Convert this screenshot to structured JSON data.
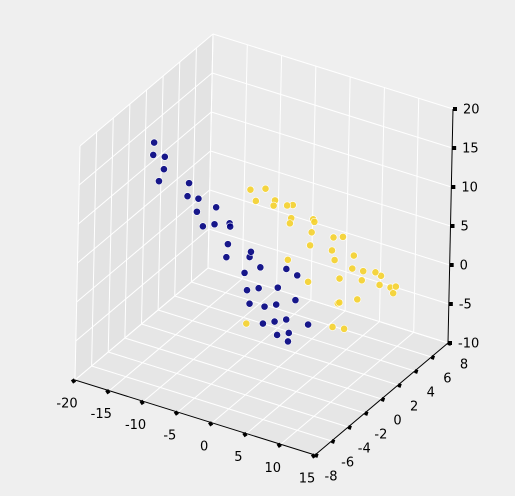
{
  "chart_data": {
    "type": "scatter3d",
    "xlim": [
      -20,
      15
    ],
    "ylim": [
      -8,
      8
    ],
    "zlim": [
      -10,
      20
    ],
    "xticks": [
      -20,
      -15,
      -10,
      -5,
      0,
      5,
      10,
      15
    ],
    "yticks": [
      -8,
      -6,
      -4,
      -2,
      0,
      2,
      4,
      6,
      8
    ],
    "zticks": [
      -10,
      -5,
      0,
      5,
      10,
      15,
      20
    ],
    "grid": true,
    "series": [
      {
        "color": "#000080",
        "x": [
          -14,
          -13.5,
          -13,
          -12.5,
          -12,
          -10,
          -9,
          -8,
          -7,
          -6,
          -5.5,
          -5,
          -4,
          -4.5,
          -3,
          -2,
          -1,
          -0.5,
          0,
          0.5,
          1,
          1.5,
          2,
          2.5,
          3,
          3.5,
          4,
          4.5,
          5,
          5.5,
          6,
          6.5,
          2,
          3,
          -2,
          4
        ],
        "y": [
          -4,
          -4.5,
          -3.5,
          -4,
          -5,
          -3,
          -4,
          -3.5,
          -4.5,
          -3,
          -5,
          -4,
          -3,
          -2.5,
          -4,
          -5,
          -3,
          -4,
          -2.5,
          -4.5,
          -3.5,
          -5,
          -2,
          -4,
          -3,
          -5,
          -4,
          -3,
          -4.5,
          -3.5,
          -4,
          -2,
          -1,
          -0.5,
          -2,
          -1.5
        ],
        "z": [
          18.5,
          17.5,
          16.5,
          15.5,
          15,
          13.5,
          13,
          12.5,
          12,
          11.5,
          11,
          10.5,
          10,
          9,
          8.5,
          8,
          6.5,
          5.5,
          5,
          4,
          3.5,
          3,
          2.5,
          2,
          1.5,
          1,
          0.5,
          0,
          -0.5,
          -1,
          -1.5,
          -1,
          4,
          3,
          6,
          1
        ]
      },
      {
        "color": "#f5d22c",
        "x": [
          -7,
          -6,
          -5,
          -4,
          -3,
          -2,
          -1,
          0,
          1,
          2,
          3,
          4,
          5,
          6,
          7,
          8,
          9,
          10,
          11,
          12,
          13,
          14,
          6,
          6.5,
          7,
          5,
          8,
          10,
          -4,
          0,
          3,
          9,
          12,
          4,
          -6,
          1
        ],
        "y": [
          2,
          3,
          1,
          2.5,
          1.5,
          3,
          2,
          1,
          3,
          2,
          1,
          3,
          2,
          1.5,
          3,
          2,
          2.5,
          1.5,
          3,
          2,
          2.5,
          2,
          2,
          1,
          2,
          3,
          0.5,
          1,
          4,
          4,
          5,
          4,
          4,
          0,
          1,
          0
        ],
        "z": [
          9,
          8.5,
          9,
          8,
          8.5,
          7.5,
          7,
          7.5,
          6.5,
          6,
          5.5,
          5,
          4.5,
          4,
          3.5,
          3,
          2.5,
          2.5,
          2,
          2,
          1.5,
          1.5,
          -2,
          -4,
          -5,
          0,
          0,
          0.5,
          6,
          5,
          3,
          1,
          0,
          2,
          -7,
          4
        ]
      }
    ]
  }
}
